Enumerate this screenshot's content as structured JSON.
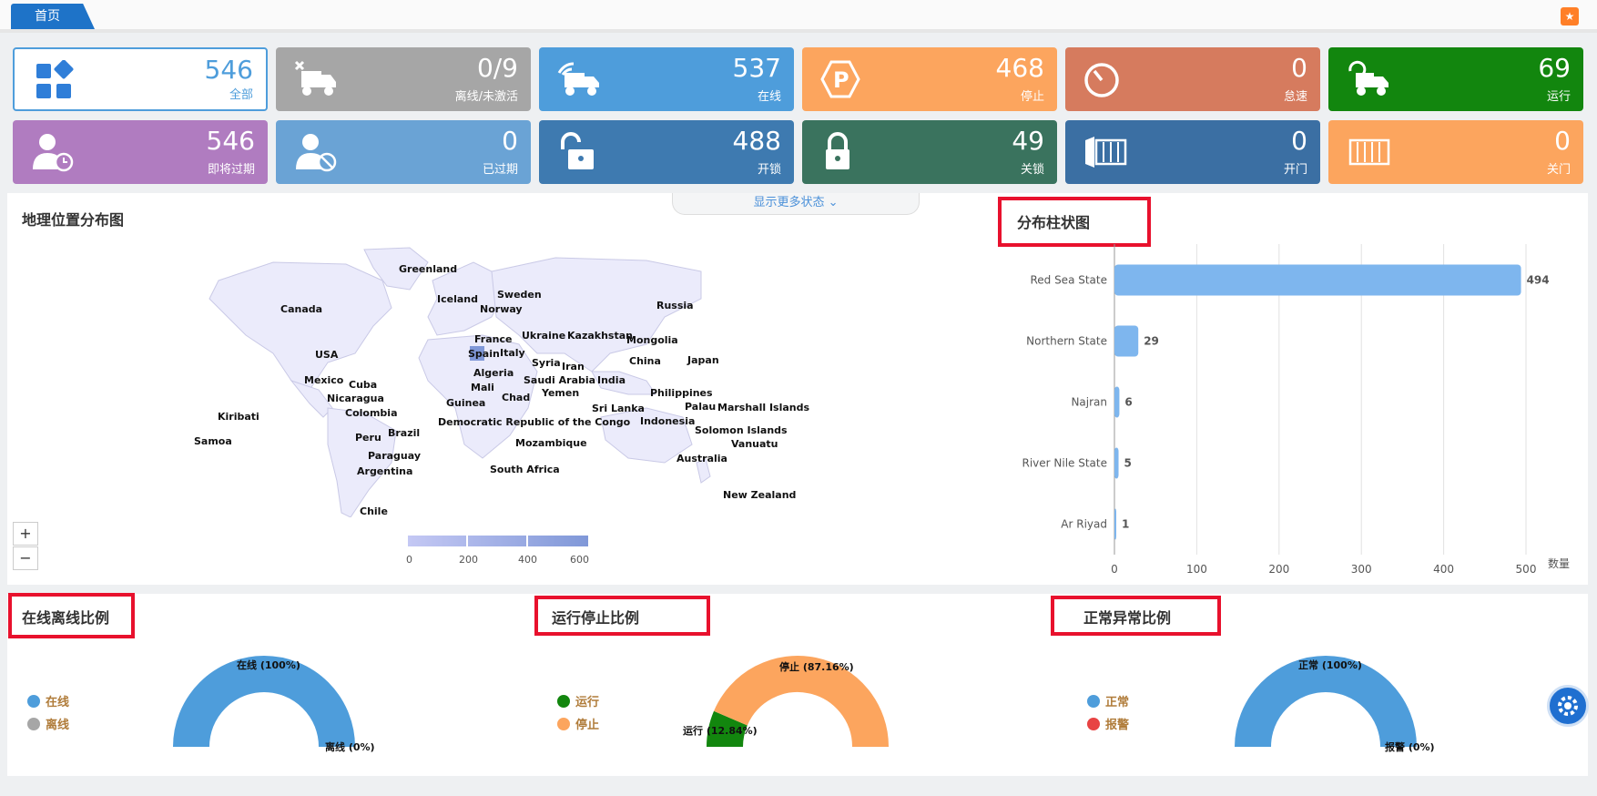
{
  "topbar": {
    "home_tab": "首页",
    "corner_icon": "bookmark-icon"
  },
  "cards": [
    {
      "value": "546",
      "label": "全部",
      "color": "#ffffff",
      "icon": "grid-icon"
    },
    {
      "value": "0/9",
      "label": "离线/未激活",
      "color": "#a6a6a6",
      "icon": "truck-x-icon"
    },
    {
      "value": "537",
      "label": "在线",
      "color": "#4e9ddb",
      "icon": "truck-signal-icon"
    },
    {
      "value": "468",
      "label": "停止",
      "color": "#fca55e",
      "icon": "parking-icon"
    },
    {
      "value": "0",
      "label": "怠速",
      "color": "#d67b5e",
      "icon": "gauge-icon"
    },
    {
      "value": "69",
      "label": "运行",
      "color": "#12860e",
      "icon": "truck-refresh-icon"
    },
    {
      "value": "546",
      "label": "即将过期",
      "color": "#b07cc0",
      "icon": "user-clock-icon"
    },
    {
      "value": "0",
      "label": "已过期",
      "color": "#6aa3d5",
      "icon": "user-ban-icon"
    },
    {
      "value": "488",
      "label": "开锁",
      "color": "#3e7ab0",
      "icon": "unlock-icon"
    },
    {
      "value": "49",
      "label": "关锁",
      "color": "#3a735e",
      "icon": "lock-icon"
    },
    {
      "value": "0",
      "label": "开门",
      "color": "#3b6fa3",
      "icon": "container-open-icon"
    },
    {
      "value": "0",
      "label": "关门",
      "color": "#fca55e",
      "icon": "container-closed-icon"
    }
  ],
  "show_more": "显示更多状态",
  "map": {
    "title": "地理位置分布图",
    "zoom_in": "+",
    "zoom_out": "−",
    "scale_ticks": [
      "0",
      "200",
      "400",
      "600"
    ],
    "countries": [
      "Greenland",
      "Iceland",
      "Sweden",
      "Norway",
      "Russia",
      "Canada",
      "France",
      "Ukraine",
      "Kazakhstan",
      "Mongolia",
      "Spain",
      "Italy",
      "USA",
      "Syria",
      "Iran",
      "China",
      "Japan",
      "Algeria",
      "Saudi Arabia",
      "India",
      "Mexico",
      "Cuba",
      "Mali",
      "Yemen",
      "Philippines",
      "Nicaragua",
      "Chad",
      "Guinea",
      "Sri Lanka",
      "Palau",
      "Marshall Islands",
      "Colombia",
      "Kiribati",
      "Democratic Republic of the Congo",
      "Indonesia",
      "Solomon Islands",
      "Brazil",
      "Peru",
      "Vanuatu",
      "Samoa",
      "Mozambique",
      "Paraguay",
      "Argentina",
      "Australia",
      "South Africa",
      "Chile",
      "New Zealand"
    ]
  },
  "bar_chart": {
    "title": "分布柱状图",
    "value_axis_label": "数量"
  },
  "chart_data": {
    "type": "bar",
    "orientation": "horizontal",
    "title": "分布柱状图",
    "categories": [
      "Red Sea State",
      "Northern State",
      "Najran",
      "River Nile State",
      "Ar Riyad"
    ],
    "values": [
      494,
      29,
      6,
      5,
      1
    ],
    "xlabel": "数量",
    "xlim": [
      0,
      500
    ],
    "xticks": [
      0,
      100,
      200,
      300,
      400,
      500
    ],
    "color": "#7eb6ee",
    "grid": true
  },
  "gauges": [
    {
      "title": "在线离线比例",
      "legend": [
        "在线",
        "离线"
      ],
      "colors": [
        "#4e9ddb",
        "#a6a6a6"
      ],
      "labels": [
        "在线 (100%)",
        "离线 (0%)"
      ],
      "fractions": [
        1.0,
        0.0
      ]
    },
    {
      "title": "运行停止比例",
      "legend": [
        "运行",
        "停止"
      ],
      "colors": [
        "#12860e",
        "#fca55e"
      ],
      "labels": [
        "停止 (87.16%)",
        "运行 (12.84%)"
      ],
      "fractions": [
        0.1284,
        0.8716
      ]
    },
    {
      "title": "正常异常比例",
      "legend": [
        "正常",
        "报警"
      ],
      "colors": [
        "#4e9ddb",
        "#e84343"
      ],
      "labels": [
        "正常 (100%)",
        "报警 (0%)"
      ],
      "fractions": [
        1.0,
        0.0
      ]
    }
  ]
}
